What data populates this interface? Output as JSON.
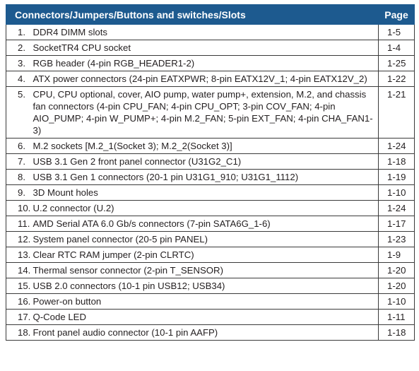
{
  "table": {
    "headers": {
      "items": "Connectors/Jumpers/Buttons and switches/Slots",
      "page": "Page"
    },
    "rows": [
      {
        "num": "1.",
        "desc": "DDR4 DIMM slots",
        "page": "1-5"
      },
      {
        "num": "2.",
        "desc": "SocketTR4 CPU socket",
        "page": "1-4"
      },
      {
        "num": "3.",
        "desc": "RGB header (4-pin RGB_HEADER1-2)",
        "page": "1-25"
      },
      {
        "num": "4.",
        "desc": "ATX power connectors (24-pin EATXPWR; 8-pin EATX12V_1; 4-pin EATX12V_2)",
        "page": "1-22"
      },
      {
        "num": "5.",
        "desc": "CPU, CPU optional, cover, AIO pump, water pump+, extension, M.2, and chassis fan connectors (4-pin CPU_FAN; 4-pin CPU_OPT; 3-pin COV_FAN; 4-pin AIO_PUMP; 4-pin W_PUMP+; 4-pin M.2_FAN; 5-pin EXT_FAN; 4-pin CHA_FAN1-3)",
        "page": "1-21"
      },
      {
        "num": "6.",
        "desc": "M.2 sockets [M.2_1(Socket 3); M.2_2(Socket 3)]",
        "page": "1-24"
      },
      {
        "num": "7.",
        "desc": "USB 3.1 Gen 2 front panel connector (U31G2_C1)",
        "page": "1-18"
      },
      {
        "num": "8.",
        "desc": "USB 3.1 Gen 1 connectors (20-1 pin U31G1_910; U31G1_1112)",
        "page": "1-19"
      },
      {
        "num": "9.",
        "desc": "3D Mount holes",
        "page": "1-10"
      },
      {
        "num": "10.",
        "desc": "U.2 connector (U.2)",
        "page": "1-24"
      },
      {
        "num": "11.",
        "desc": "AMD Serial ATA 6.0 Gb/s connectors (7-pin SATA6G_1-6)",
        "page": "1-17"
      },
      {
        "num": "12.",
        "desc": "System panel connector (20-5 pin PANEL)",
        "page": "1-23"
      },
      {
        "num": "13.",
        "desc": "Clear RTC RAM jumper (2-pin CLRTC)",
        "page": "1-9"
      },
      {
        "num": "14.",
        "desc": "Thermal sensor connector (2-pin T_SENSOR)",
        "page": "1-20"
      },
      {
        "num": "15.",
        "desc": "USB 2.0 connectors (10-1 pin USB12; USB34)",
        "page": "1-20"
      },
      {
        "num": "16.",
        "desc": "Power-on button",
        "page": "1-10"
      },
      {
        "num": "17.",
        "desc": "Q-Code LED",
        "page": "1-11"
      },
      {
        "num": "18.",
        "desc": "Front panel audio connector (10-1 pin AAFP)",
        "page": "1-18"
      }
    ]
  },
  "colors": {
    "header_bg": "#1d5a8f",
    "header_text": "#ffffff",
    "border": "#3a3a3a",
    "text": "#231f20"
  }
}
